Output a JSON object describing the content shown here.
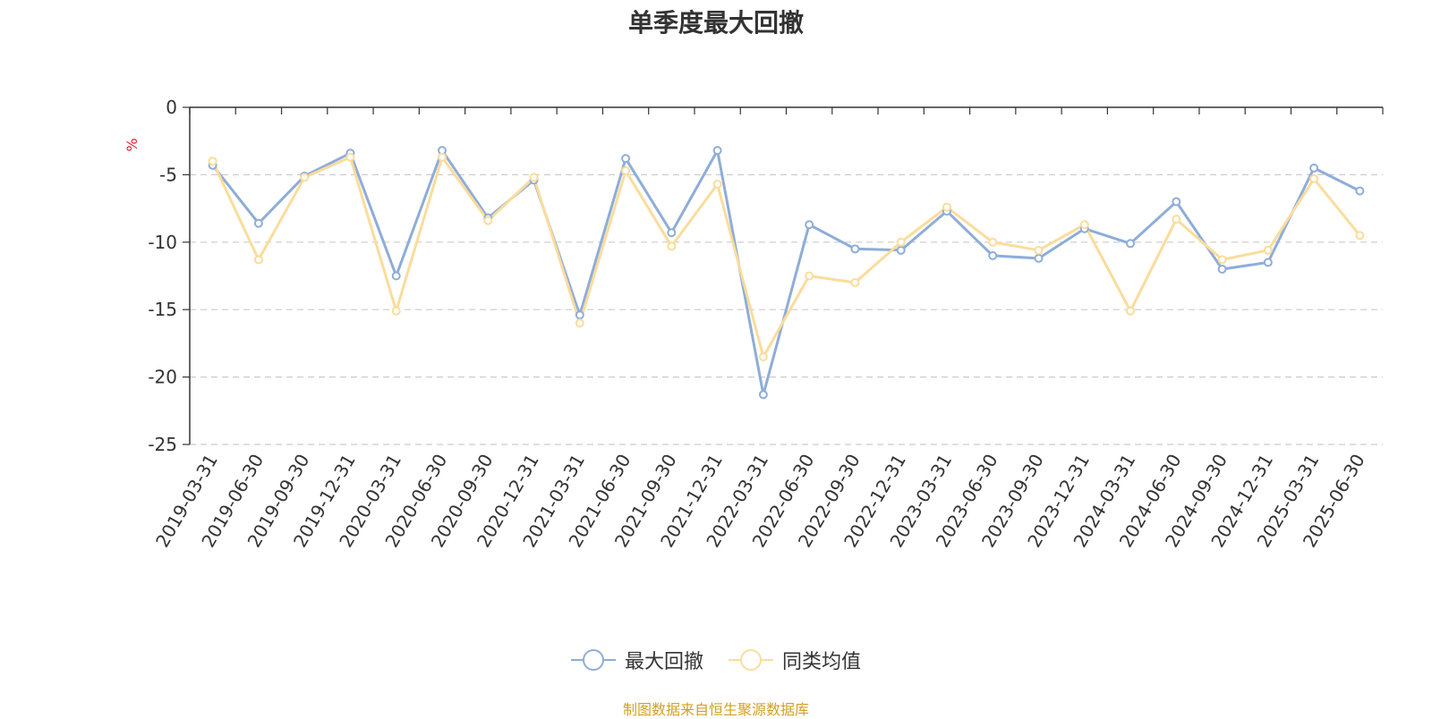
{
  "colors": {
    "series0": "#8eadd8",
    "series1": "#fbdc9c",
    "unit": "#e0202a",
    "source": "#d4a020"
  },
  "source_text": "制图数据来自恒生聚源数据库",
  "chart_data": {
    "type": "line",
    "title": "单季度最大回撤",
    "ylabel": "%",
    "ylim": [
      -25,
      0
    ],
    "yticks": [
      0,
      -5,
      -10,
      -15,
      -20,
      -25
    ],
    "grid": true,
    "legend_position": "bottom-center",
    "categories": [
      "2019-03-31",
      "2019-06-30",
      "2019-09-30",
      "2019-12-31",
      "2020-03-31",
      "2020-06-30",
      "2020-09-30",
      "2020-12-31",
      "2021-03-31",
      "2021-06-30",
      "2021-09-30",
      "2021-12-31",
      "2022-03-31",
      "2022-06-30",
      "2022-09-30",
      "2022-12-31",
      "2023-03-31",
      "2023-06-30",
      "2023-09-30",
      "2023-12-31",
      "2024-03-31",
      "2024-06-30",
      "2024-09-30",
      "2024-12-31",
      "2025-03-31",
      "2025-06-30"
    ],
    "series": [
      {
        "name": "最大回撤",
        "values": [
          -4.3,
          -8.6,
          -5.1,
          -3.4,
          -12.5,
          -3.2,
          -8.2,
          -5.4,
          -15.4,
          -3.8,
          -9.3,
          -3.2,
          -21.3,
          -8.7,
          -10.5,
          -10.6,
          -7.7,
          -11.0,
          -11.2,
          -9.0,
          -10.1,
          -7.0,
          -12.0,
          -11.5,
          -4.5,
          -6.2
        ]
      },
      {
        "name": "同类均值",
        "values": [
          -4.0,
          -11.3,
          -5.2,
          -3.7,
          -15.1,
          -3.7,
          -8.4,
          -5.2,
          -16.0,
          -4.7,
          -10.3,
          -5.7,
          -18.5,
          -12.5,
          -13.0,
          -10.0,
          -7.4,
          -10.0,
          -10.6,
          -8.7,
          -15.1,
          -8.3,
          -11.3,
          -10.6,
          -5.3,
          -9.5
        ]
      }
    ]
  }
}
